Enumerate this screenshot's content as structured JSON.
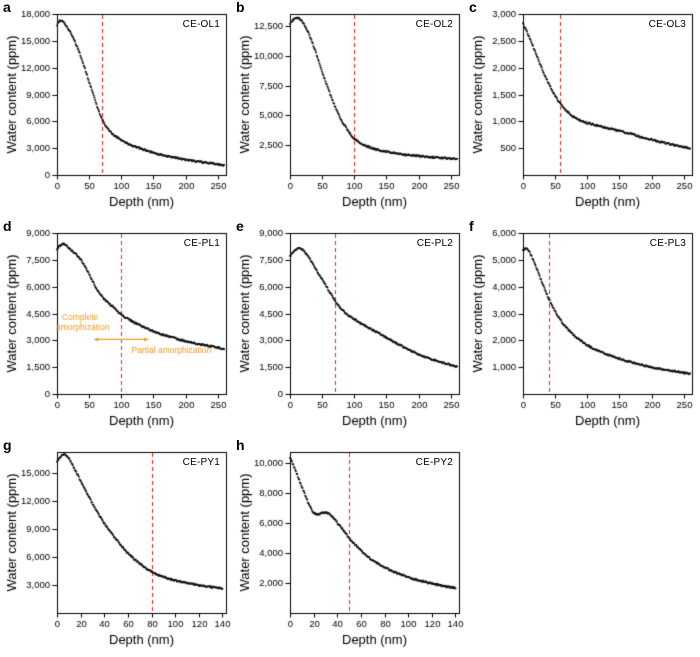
{
  "figure": {
    "background_color": "#ffffff",
    "red_line_color": "#ff1a1a",
    "marker_color": "#111111",
    "annotation_color": "#f59a23"
  },
  "chart_data": [
    {
      "panel_letter": "a",
      "type": "scatter",
      "title": "CE-OL1",
      "xlabel": "Depth (nm)",
      "ylabel": "Water content (ppm)",
      "xlim": [
        0,
        263
      ],
      "xticks": [
        0,
        50,
        100,
        150,
        200,
        250
      ],
      "ylim": [
        0,
        18000
      ],
      "yticks": [
        0,
        3000,
        6000,
        9000,
        12000,
        15000,
        18000
      ],
      "red_dashed_line_x": 70,
      "points": [
        [
          0,
          16800
        ],
        [
          3,
          17150
        ],
        [
          6,
          17300
        ],
        [
          10,
          17100
        ],
        [
          15,
          16650
        ],
        [
          20,
          16050
        ],
        [
          25,
          15350
        ],
        [
          30,
          14550
        ],
        [
          35,
          13650
        ],
        [
          40,
          12650
        ],
        [
          45,
          11550
        ],
        [
          50,
          10400
        ],
        [
          55,
          9300
        ],
        [
          60,
          8200
        ],
        [
          65,
          7150
        ],
        [
          70,
          6250
        ],
        [
          75,
          5600
        ],
        [
          80,
          5100
        ],
        [
          85,
          4700
        ],
        [
          90,
          4400
        ],
        [
          100,
          3900
        ],
        [
          110,
          3500
        ],
        [
          120,
          3200
        ],
        [
          130,
          2950
        ],
        [
          140,
          2700
        ],
        [
          150,
          2500
        ],
        [
          160,
          2300
        ],
        [
          170,
          2150
        ],
        [
          180,
          2000
        ],
        [
          190,
          1850
        ],
        [
          200,
          1700
        ],
        [
          210,
          1600
        ],
        [
          220,
          1500
        ],
        [
          230,
          1400
        ],
        [
          240,
          1300
        ],
        [
          250,
          1200
        ],
        [
          260,
          1100
        ]
      ]
    },
    {
      "panel_letter": "b",
      "type": "scatter",
      "title": "CE-OL2",
      "xlabel": "Depth (nm)",
      "ylabel": "Water content (ppm)",
      "xlim": [
        0,
        263
      ],
      "xticks": [
        0,
        50,
        100,
        150,
        200,
        250
      ],
      "ylim": [
        0,
        13500
      ],
      "yticks": [
        2500,
        5000,
        7500,
        10000,
        12500
      ],
      "red_dashed_line_x": 100,
      "points": [
        [
          0,
          12700
        ],
        [
          5,
          13000
        ],
        [
          10,
          13200
        ],
        [
          15,
          13100
        ],
        [
          20,
          12800
        ],
        [
          25,
          12350
        ],
        [
          30,
          11750
        ],
        [
          35,
          11050
        ],
        [
          40,
          10300
        ],
        [
          45,
          9500
        ],
        [
          50,
          8700
        ],
        [
          55,
          7900
        ],
        [
          60,
          7150
        ],
        [
          65,
          6400
        ],
        [
          70,
          5750
        ],
        [
          75,
          5150
        ],
        [
          80,
          4600
        ],
        [
          85,
          4150
        ],
        [
          90,
          3750
        ],
        [
          95,
          3350
        ],
        [
          100,
          3050
        ],
        [
          110,
          2650
        ],
        [
          120,
          2400
        ],
        [
          130,
          2200
        ],
        [
          140,
          2050
        ],
        [
          150,
          1950
        ],
        [
          160,
          1850
        ],
        [
          170,
          1750
        ],
        [
          180,
          1700
        ],
        [
          190,
          1650
        ],
        [
          200,
          1600
        ],
        [
          210,
          1550
        ],
        [
          220,
          1500
        ],
        [
          230,
          1450
        ],
        [
          240,
          1420
        ],
        [
          250,
          1380
        ],
        [
          260,
          1350
        ]
      ]
    },
    {
      "panel_letter": "c",
      "type": "scatter",
      "title": "CE-OL3",
      "xlabel": "Depth (nm)",
      "ylabel": "Water content (ppm)",
      "xlim": [
        0,
        263
      ],
      "xticks": [
        0,
        50,
        100,
        150,
        200,
        250
      ],
      "ylim": [
        0,
        3000
      ],
      "yticks": [
        500,
        1000,
        1500,
        2000,
        2500,
        3000
      ],
      "red_dashed_line_x": 57,
      "points": [
        [
          0,
          2820
        ],
        [
          5,
          2700
        ],
        [
          10,
          2560
        ],
        [
          15,
          2410
        ],
        [
          20,
          2260
        ],
        [
          25,
          2110
        ],
        [
          30,
          1960
        ],
        [
          35,
          1830
        ],
        [
          40,
          1700
        ],
        [
          45,
          1580
        ],
        [
          50,
          1470
        ],
        [
          55,
          1380
        ],
        [
          60,
          1300
        ],
        [
          65,
          1230
        ],
        [
          70,
          1170
        ],
        [
          75,
          1120
        ],
        [
          80,
          1070
        ],
        [
          90,
          1010
        ],
        [
          100,
          970
        ],
        [
          110,
          940
        ],
        [
          120,
          910
        ],
        [
          130,
          880
        ],
        [
          140,
          850
        ],
        [
          150,
          820
        ],
        [
          160,
          790
        ],
        [
          170,
          760
        ],
        [
          180,
          720
        ],
        [
          190,
          690
        ],
        [
          200,
          660
        ],
        [
          210,
          630
        ],
        [
          220,
          600
        ],
        [
          230,
          570
        ],
        [
          240,
          545
        ],
        [
          250,
          520
        ],
        [
          260,
          500
        ]
      ]
    },
    {
      "panel_letter": "d",
      "type": "scatter",
      "title": "CE-PL1",
      "xlabel": "Depth (nm)",
      "ylabel": "Water content (ppm)",
      "xlim": [
        0,
        263
      ],
      "xticks": [
        0,
        50,
        100,
        150,
        200,
        250
      ],
      "ylim": [
        0,
        9000
      ],
      "yticks": [
        0,
        1500,
        3000,
        4500,
        6000,
        7500,
        9000
      ],
      "red_dashed_line_x": 100,
      "annotations": [
        {
          "type": "text",
          "text": "Complete",
          "x": 36,
          "y": 4250,
          "size": 8.5
        },
        {
          "type": "text",
          "text": "amorphization",
          "x": 40,
          "y": 3700,
          "size": 8.5
        },
        {
          "type": "arrow",
          "x1": 58,
          "y1": 3050,
          "x2": 142,
          "y2": 3050,
          "double": true
        },
        {
          "type": "text",
          "text": "Partial amorphization",
          "x": 178,
          "y": 2400,
          "size": 8.5
        }
      ],
      "points": [
        [
          0,
          8100
        ],
        [
          5,
          8300
        ],
        [
          10,
          8400
        ],
        [
          15,
          8300
        ],
        [
          20,
          8100
        ],
        [
          25,
          7950
        ],
        [
          30,
          7800
        ],
        [
          35,
          7600
        ],
        [
          40,
          7350
        ],
        [
          45,
          7050
        ],
        [
          50,
          6700
        ],
        [
          55,
          6350
        ],
        [
          60,
          6000
        ],
        [
          65,
          5700
        ],
        [
          70,
          5450
        ],
        [
          75,
          5250
        ],
        [
          80,
          5080
        ],
        [
          85,
          4930
        ],
        [
          90,
          4780
        ],
        [
          95,
          4600
        ],
        [
          100,
          4450
        ],
        [
          110,
          4200
        ],
        [
          120,
          4000
        ],
        [
          130,
          3820
        ],
        [
          140,
          3650
        ],
        [
          150,
          3500
        ],
        [
          160,
          3380
        ],
        [
          170,
          3270
        ],
        [
          180,
          3150
        ],
        [
          190,
          3050
        ],
        [
          200,
          2950
        ],
        [
          210,
          2870
        ],
        [
          220,
          2800
        ],
        [
          230,
          2730
        ],
        [
          240,
          2670
        ],
        [
          250,
          2600
        ],
        [
          260,
          2520
        ]
      ]
    },
    {
      "panel_letter": "e",
      "type": "scatter",
      "title": "CE-PL2",
      "xlabel": "Depth (nm)",
      "ylabel": "Water content (ppm)",
      "xlim": [
        0,
        263
      ],
      "xticks": [
        0,
        50,
        100,
        150,
        200,
        250
      ],
      "ylim": [
        0,
        9000
      ],
      "yticks": [
        0,
        1500,
        3000,
        4500,
        6000,
        7500,
        9000
      ],
      "red_dashed_line_x": 70,
      "points": [
        [
          0,
          7700
        ],
        [
          5,
          7950
        ],
        [
          10,
          8100
        ],
        [
          15,
          8150
        ],
        [
          20,
          8050
        ],
        [
          25,
          7850
        ],
        [
          30,
          7600
        ],
        [
          35,
          7300
        ],
        [
          40,
          7000
        ],
        [
          45,
          6700
        ],
        [
          50,
          6400
        ],
        [
          55,
          6100
        ],
        [
          60,
          5800
        ],
        [
          65,
          5500
        ],
        [
          70,
          5200
        ],
        [
          75,
          4950
        ],
        [
          80,
          4750
        ],
        [
          85,
          4580
        ],
        [
          90,
          4430
        ],
        [
          95,
          4300
        ],
        [
          100,
          4180
        ],
        [
          110,
          3950
        ],
        [
          120,
          3750
        ],
        [
          130,
          3550
        ],
        [
          140,
          3350
        ],
        [
          150,
          3150
        ],
        [
          160,
          2950
        ],
        [
          170,
          2750
        ],
        [
          180,
          2550
        ],
        [
          190,
          2380
        ],
        [
          200,
          2220
        ],
        [
          210,
          2080
        ],
        [
          220,
          1950
        ],
        [
          230,
          1830
        ],
        [
          240,
          1720
        ],
        [
          250,
          1620
        ],
        [
          260,
          1530
        ]
      ]
    },
    {
      "panel_letter": "f",
      "type": "scatter",
      "title": "CE-PL3",
      "xlabel": "Depth (nm)",
      "ylabel": "Water content (ppm)",
      "xlim": [
        0,
        263
      ],
      "xticks": [
        0,
        50,
        100,
        150,
        200,
        250
      ],
      "ylim": [
        0,
        6000
      ],
      "yticks": [
        1000,
        2000,
        3000,
        4000,
        5000,
        6000
      ],
      "red_dashed_line_x": 40,
      "points": [
        [
          0,
          5350
        ],
        [
          5,
          5450
        ],
        [
          10,
          5300
        ],
        [
          15,
          5050
        ],
        [
          20,
          4750
        ],
        [
          25,
          4450
        ],
        [
          30,
          4150
        ],
        [
          35,
          3850
        ],
        [
          40,
          3550
        ],
        [
          45,
          3300
        ],
        [
          50,
          3080
        ],
        [
          55,
          2880
        ],
        [
          60,
          2700
        ],
        [
          65,
          2540
        ],
        [
          70,
          2400
        ],
        [
          75,
          2280
        ],
        [
          80,
          2170
        ],
        [
          90,
          1980
        ],
        [
          100,
          1820
        ],
        [
          110,
          1690
        ],
        [
          120,
          1580
        ],
        [
          130,
          1480
        ],
        [
          140,
          1390
        ],
        [
          150,
          1310
        ],
        [
          160,
          1240
        ],
        [
          170,
          1170
        ],
        [
          180,
          1110
        ],
        [
          190,
          1050
        ],
        [
          200,
          1000
        ],
        [
          210,
          950
        ],
        [
          220,
          910
        ],
        [
          230,
          870
        ],
        [
          240,
          830
        ],
        [
          250,
          790
        ],
        [
          260,
          760
        ]
      ]
    },
    {
      "panel_letter": "g",
      "type": "scatter",
      "title": "CE-PY1",
      "xlabel": "Depth (nm)",
      "ylabel": "Water content (ppm)",
      "xlim": [
        0,
        143
      ],
      "xticks": [
        0,
        20,
        40,
        60,
        80,
        100,
        120,
        140
      ],
      "ylim": [
        0,
        17200
      ],
      "yticks": [
        3000,
        6000,
        9000,
        12000,
        15000
      ],
      "red_dashed_line_x": 80,
      "points": [
        [
          0,
          16200
        ],
        [
          2,
          16500
        ],
        [
          4,
          16800
        ],
        [
          6,
          16900
        ],
        [
          8,
          16800
        ],
        [
          10,
          16500
        ],
        [
          12,
          16100
        ],
        [
          14,
          15600
        ],
        [
          16,
          15100
        ],
        [
          18,
          14600
        ],
        [
          20,
          14100
        ],
        [
          25,
          12900
        ],
        [
          30,
          11700
        ],
        [
          35,
          10600
        ],
        [
          40,
          9600
        ],
        [
          45,
          8700
        ],
        [
          50,
          7900
        ],
        [
          55,
          7100
        ],
        [
          60,
          6400
        ],
        [
          65,
          5800
        ],
        [
          70,
          5300
        ],
        [
          75,
          4800
        ],
        [
          80,
          4400
        ],
        [
          85,
          4100
        ],
        [
          90,
          3850
        ],
        [
          95,
          3650
        ],
        [
          100,
          3480
        ],
        [
          105,
          3330
        ],
        [
          110,
          3200
        ],
        [
          115,
          3080
        ],
        [
          120,
          2970
        ],
        [
          125,
          2870
        ],
        [
          130,
          2780
        ],
        [
          135,
          2700
        ],
        [
          140,
          2620
        ]
      ]
    },
    {
      "panel_letter": "h",
      "type": "scatter",
      "title": "CE-PY2",
      "xlabel": "Depth (nm)",
      "ylabel": "Water content (ppm)",
      "xlim": [
        0,
        143
      ],
      "xticks": [
        0,
        20,
        40,
        60,
        80,
        100,
        120,
        140
      ],
      "ylim": [
        0,
        10700
      ],
      "yticks": [
        2000,
        4000,
        6000,
        8000,
        10000
      ],
      "red_dashed_line_x": 50,
      "points": [
        [
          0,
          10300
        ],
        [
          2,
          10000
        ],
        [
          4,
          9600
        ],
        [
          6,
          9200
        ],
        [
          8,
          8800
        ],
        [
          10,
          8400
        ],
        [
          12,
          8000
        ],
        [
          14,
          7600
        ],
        [
          16,
          7200
        ],
        [
          18,
          6900
        ],
        [
          20,
          6650
        ],
        [
          22,
          6560
        ],
        [
          24,
          6550
        ],
        [
          26,
          6600
        ],
        [
          28,
          6650
        ],
        [
          30,
          6680
        ],
        [
          32,
          6640
        ],
        [
          34,
          6540
        ],
        [
          36,
          6400
        ],
        [
          38,
          6200
        ],
        [
          40,
          6000
        ],
        [
          42,
          5800
        ],
        [
          44,
          5600
        ],
        [
          46,
          5400
        ],
        [
          48,
          5200
        ],
        [
          50,
          5000
        ],
        [
          55,
          4550
        ],
        [
          60,
          4150
        ],
        [
          65,
          3800
        ],
        [
          70,
          3500
        ],
        [
          75,
          3250
        ],
        [
          80,
          3030
        ],
        [
          85,
          2840
        ],
        [
          90,
          2670
        ],
        [
          95,
          2520
        ],
        [
          100,
          2380
        ],
        [
          105,
          2260
        ],
        [
          110,
          2150
        ],
        [
          115,
          2050
        ],
        [
          120,
          1960
        ],
        [
          125,
          1880
        ],
        [
          130,
          1800
        ],
        [
          135,
          1730
        ],
        [
          140,
          1660
        ]
      ]
    }
  ]
}
